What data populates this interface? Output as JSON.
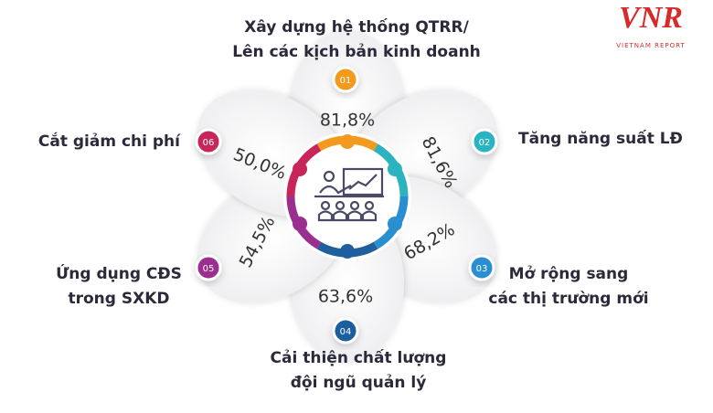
{
  "logo": {
    "mark": "VNR",
    "name": "VIETNAM REPORT"
  },
  "items": [
    {
      "number": "01",
      "label": [
        "Xây dựng hệ thống QTRR/",
        "Lên các kịch bản kinh doanh"
      ],
      "value": "81,8%"
    },
    {
      "number": "02",
      "label": [
        "Tăng năng suất LĐ"
      ],
      "value": "81,6%"
    },
    {
      "number": "03",
      "label": [
        "Mở rộng sang",
        "các thị trường mới"
      ],
      "value": "68,2%"
    },
    {
      "number": "04",
      "label": [
        "Cải thiện chất lượng",
        "đội ngũ quản lý"
      ],
      "value": "63,6%"
    },
    {
      "number": "05",
      "label": [
        "Ứng dụng CĐS",
        "trong SXKD"
      ],
      "value": "54,5%"
    },
    {
      "number": "06",
      "label": [
        "Cắt giảm chi phí"
      ],
      "value": "50,0%"
    }
  ]
}
